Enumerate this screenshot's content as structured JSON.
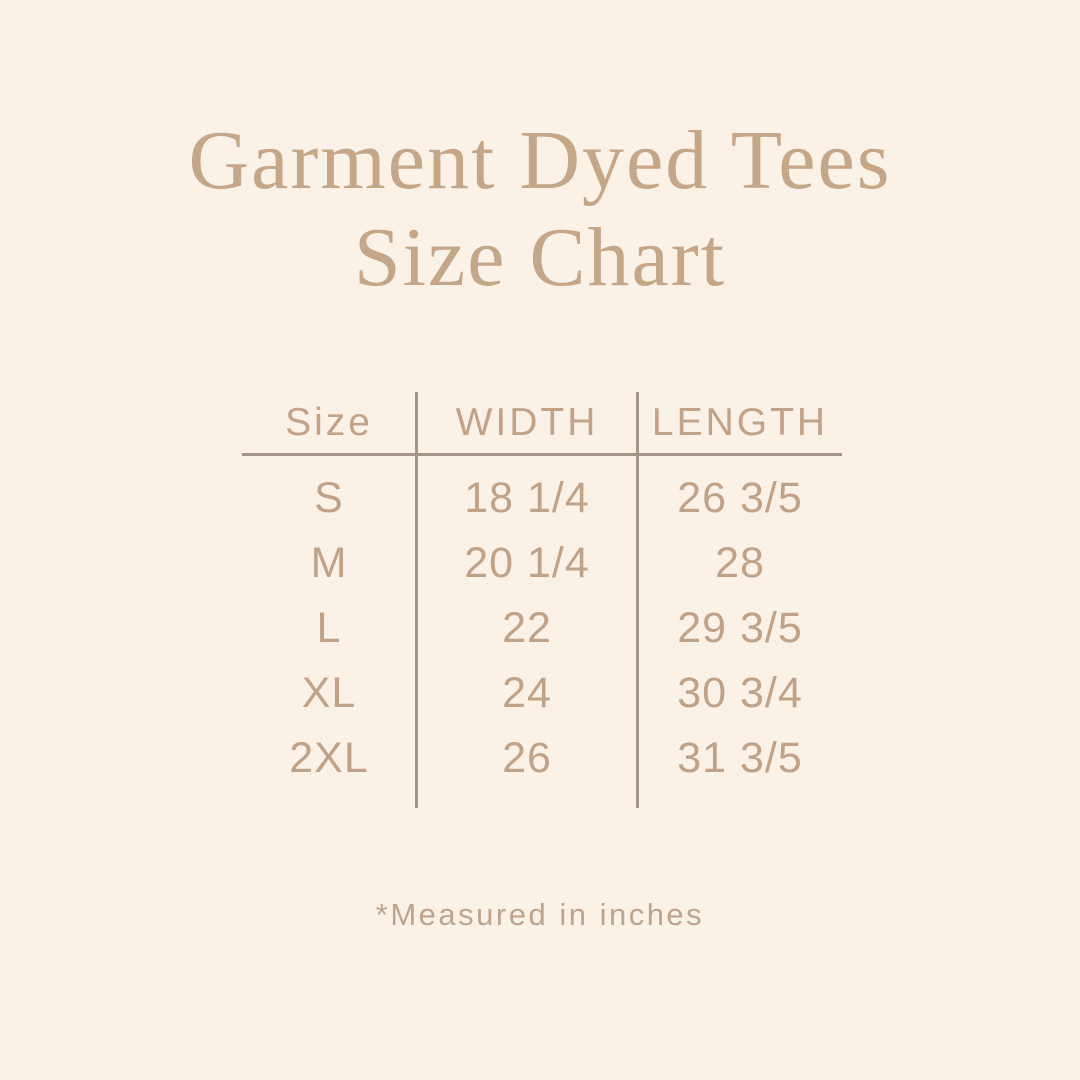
{
  "page": {
    "background_color": "#fbf2e7",
    "title_color": "#c5a687",
    "table_text_color": "#c0a287",
    "line_color": "#a5968a"
  },
  "title": {
    "line1": "Garment Dyed Tees",
    "line2": "Size Chart"
  },
  "table": {
    "columns": [
      "Size",
      "WIDTH",
      "LENGTH"
    ],
    "rows": [
      {
        "size": "S",
        "width": "18 1/4",
        "length": "26 3/5"
      },
      {
        "size": "M",
        "width": "20 1/4",
        "length": "28"
      },
      {
        "size": "L",
        "width": "22",
        "length": "29 3/5"
      },
      {
        "size": "XL",
        "width": "24",
        "length": "30 3/4"
      },
      {
        "size": "2XL",
        "width": "26",
        "length": "31 3/5"
      }
    ]
  },
  "footer": {
    "note": "*Measured in inches"
  },
  "chart_data": {
    "type": "table",
    "title": "Garment Dyed Tees Size Chart",
    "columns": [
      "Size",
      "WIDTH",
      "LENGTH"
    ],
    "categories": [
      "S",
      "M",
      "L",
      "XL",
      "2XL"
    ],
    "series": [
      {
        "name": "WIDTH",
        "values": [
          "18 1/4",
          "20 1/4",
          "22",
          "24",
          "26"
        ]
      },
      {
        "name": "LENGTH",
        "values": [
          "26 3/5",
          "28",
          "29 3/5",
          "30 3/4",
          "31 3/5"
        ]
      }
    ],
    "units": "inches",
    "annotations": [
      "*Measured in inches"
    ]
  }
}
